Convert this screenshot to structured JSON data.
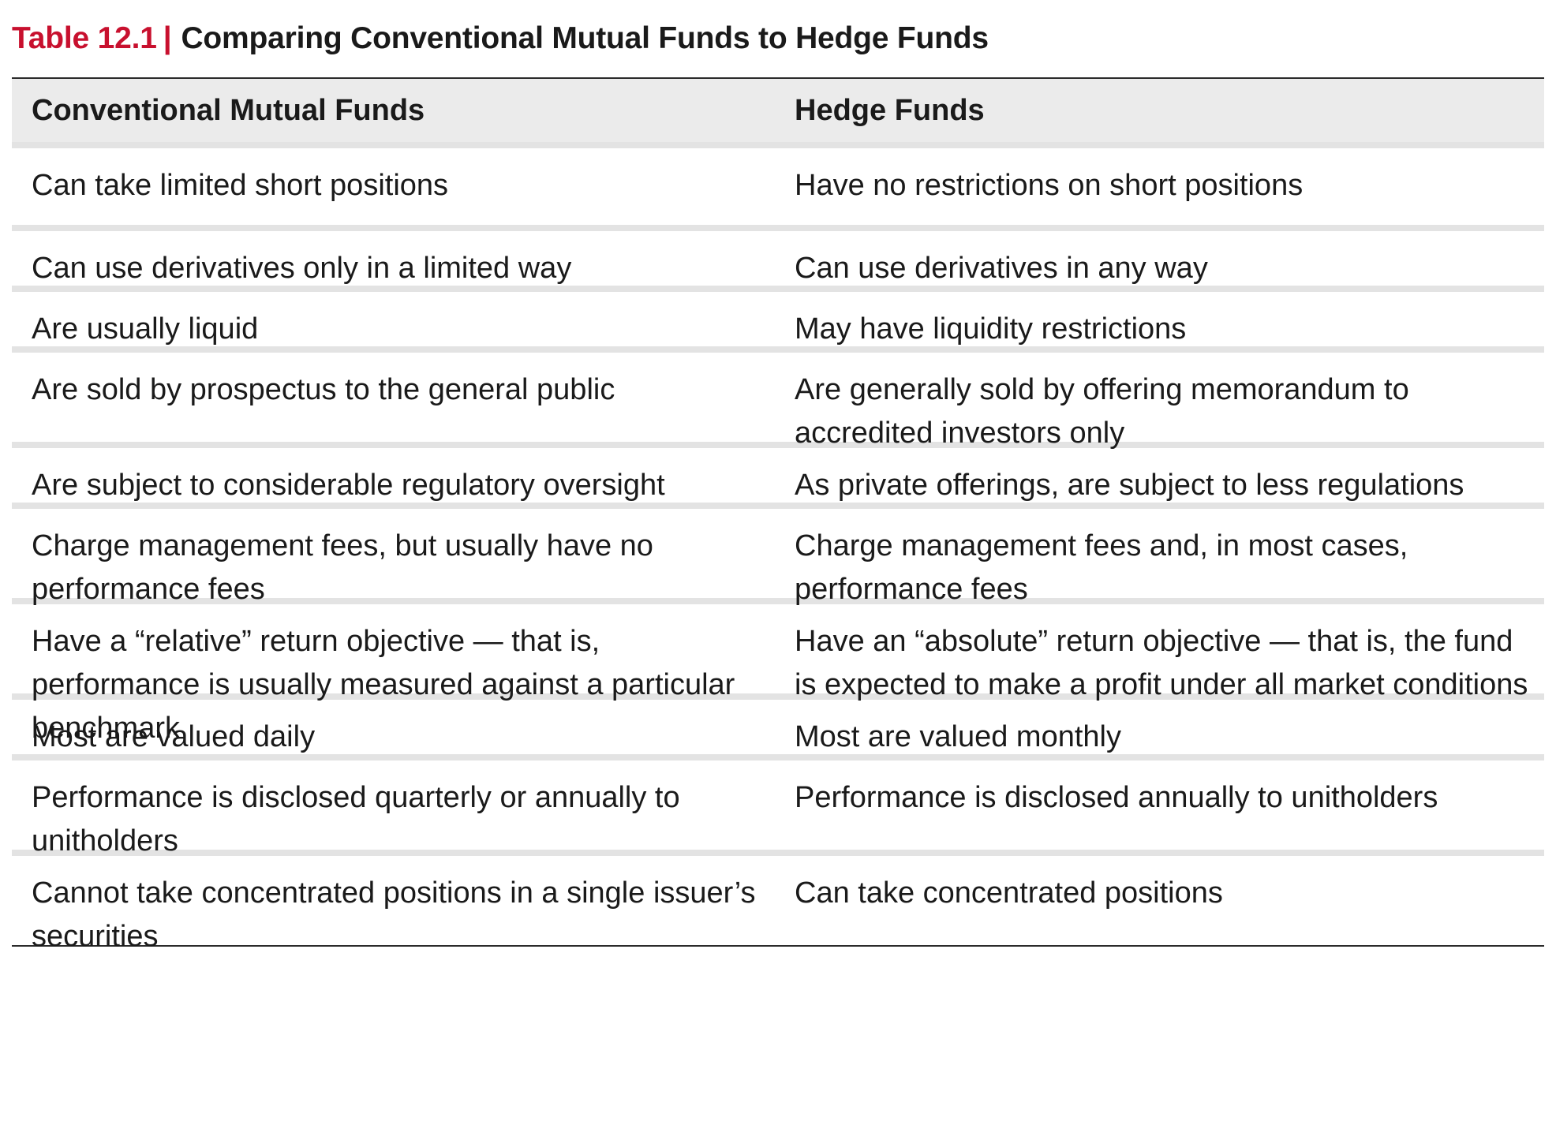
{
  "caption": {
    "label": "Table 12.1",
    "separator": "|",
    "title": "Comparing Conventional Mutual Funds to Hedge Funds"
  },
  "table": {
    "headers": [
      "Conventional Mutual Funds",
      "Hedge Funds"
    ],
    "rows": [
      [
        "Can take limited short positions",
        "Have no restrictions on short positions"
      ],
      [
        "Can use derivatives only in a limited way",
        "Can use derivatives in any way"
      ],
      [
        "Are usually liquid",
        "May have liquidity restrictions"
      ],
      [
        "Are sold by prospectus to the general public",
        "Are generally sold by offering memorandum to accredited investors only"
      ],
      [
        "Are subject to considerable regulatory oversight",
        "As private offerings, are subject to less regulations"
      ],
      [
        "Charge management fees, but usually have no performance fees",
        "Charge management fees and, in most cases, performance fees"
      ],
      [
        "Have a “relative” return objective — that is, performance is usually measured against a particular benchmark",
        "Have an “absolute” return objective — that is, the fund is expected to make a profit under all market conditions"
      ],
      [
        "Most are valued daily",
        "Most are valued monthly"
      ],
      [
        "Performance is disclosed quarterly or annually to unitholders",
        "Performance is disclosed annually to unitholders"
      ],
      [
        "Cannot take concentrated positions in a single issuer’s securities",
        "Can take concentrated positions"
      ]
    ]
  },
  "colors": {
    "accent": "#c8102e",
    "header_bg": "#ebebeb",
    "row_divider": "#e3e3e3",
    "rule": "#2b2b2b"
  }
}
